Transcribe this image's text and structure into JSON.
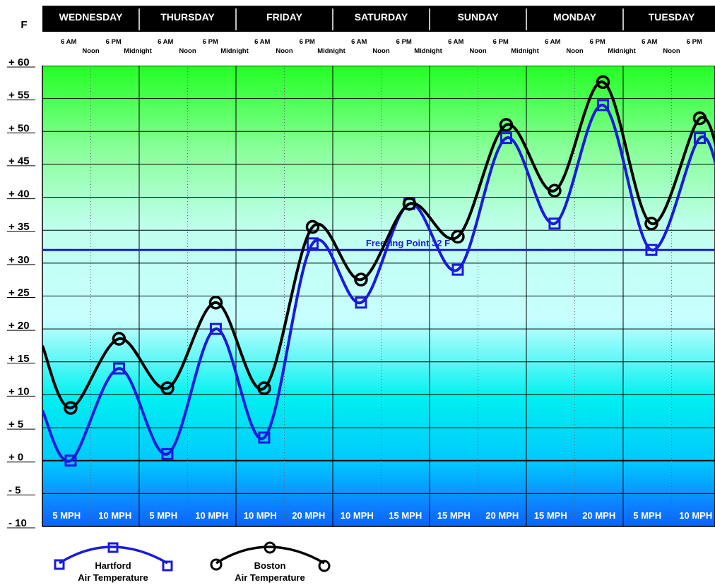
{
  "chart_data": {
    "type": "line",
    "yaxis_unit": "F",
    "ylim": [
      -10,
      60
    ],
    "ytick_labels": [
      "+ 60",
      "+ 55",
      "+ 50",
      "+ 45",
      "+ 40",
      "+ 35",
      "+ 30",
      "+ 25",
      "+ 20",
      "+ 15",
      "+ 10",
      "+ 5",
      "+ 0",
      "- 5",
      "- 10"
    ],
    "ytick_values": [
      60,
      55,
      50,
      45,
      40,
      35,
      30,
      25,
      20,
      15,
      10,
      5,
      0,
      -5,
      -10
    ],
    "days": [
      "WEDNESDAY",
      "THURSDAY",
      "FRIDAY",
      "SATURDAY",
      "SUNDAY",
      "MONDAY",
      "TUESDAY"
    ],
    "day_time_labels": {
      "top_row": [
        "6 AM",
        "6 PM"
      ],
      "bottom_row": [
        "Noon",
        "Midnight"
      ]
    },
    "wind_speeds": [
      "5 MPH",
      "10 MPH",
      "5 MPH",
      "10 MPH",
      "10 MPH",
      "20 MPH",
      "10 MPH",
      "15 MPH",
      "15 MPH",
      "20 MPH",
      "15 MPH",
      "20 MPH",
      "5 MPH",
      "10 MPH"
    ],
    "reference_line": {
      "label": "Freezing Point 32 F",
      "value": 32,
      "color": "#1a1adc"
    },
    "x_unit": "hours from Wednesday midnight",
    "series": [
      {
        "name": "Hartford Air Temperature",
        "color": "#1a1adc",
        "marker": "square",
        "x": [
          7,
          19,
          31,
          43,
          55,
          67,
          79,
          91,
          103,
          115,
          127,
          139,
          151,
          163
        ],
        "values": [
          0,
          14,
          1,
          20,
          3.5,
          33,
          24,
          39,
          29,
          49,
          36,
          54,
          32,
          49
        ]
      },
      {
        "name": "Boston Air Temperature",
        "color": "#000000",
        "marker": "circle",
        "x": [
          7,
          19,
          31,
          43,
          55,
          67,
          79,
          91,
          103,
          115,
          127,
          139,
          151,
          163
        ],
        "values": [
          8,
          18.5,
          11,
          24,
          11,
          35.5,
          27.5,
          39,
          34,
          51,
          41,
          57.5,
          36,
          52
        ]
      }
    ],
    "legend": [
      {
        "line1": "Hartford",
        "line2": "Air Temperature",
        "color": "#1a1adc",
        "marker": "square"
      },
      {
        "line1": "Boston",
        "line2": "Air Temperature",
        "color": "#000000",
        "marker": "circle"
      }
    ],
    "legend_placement": "bottom-left",
    "grid": true,
    "background_gradient": [
      "#22ff22",
      "#bfffff",
      "#00eeee",
      "#1070ff"
    ]
  }
}
